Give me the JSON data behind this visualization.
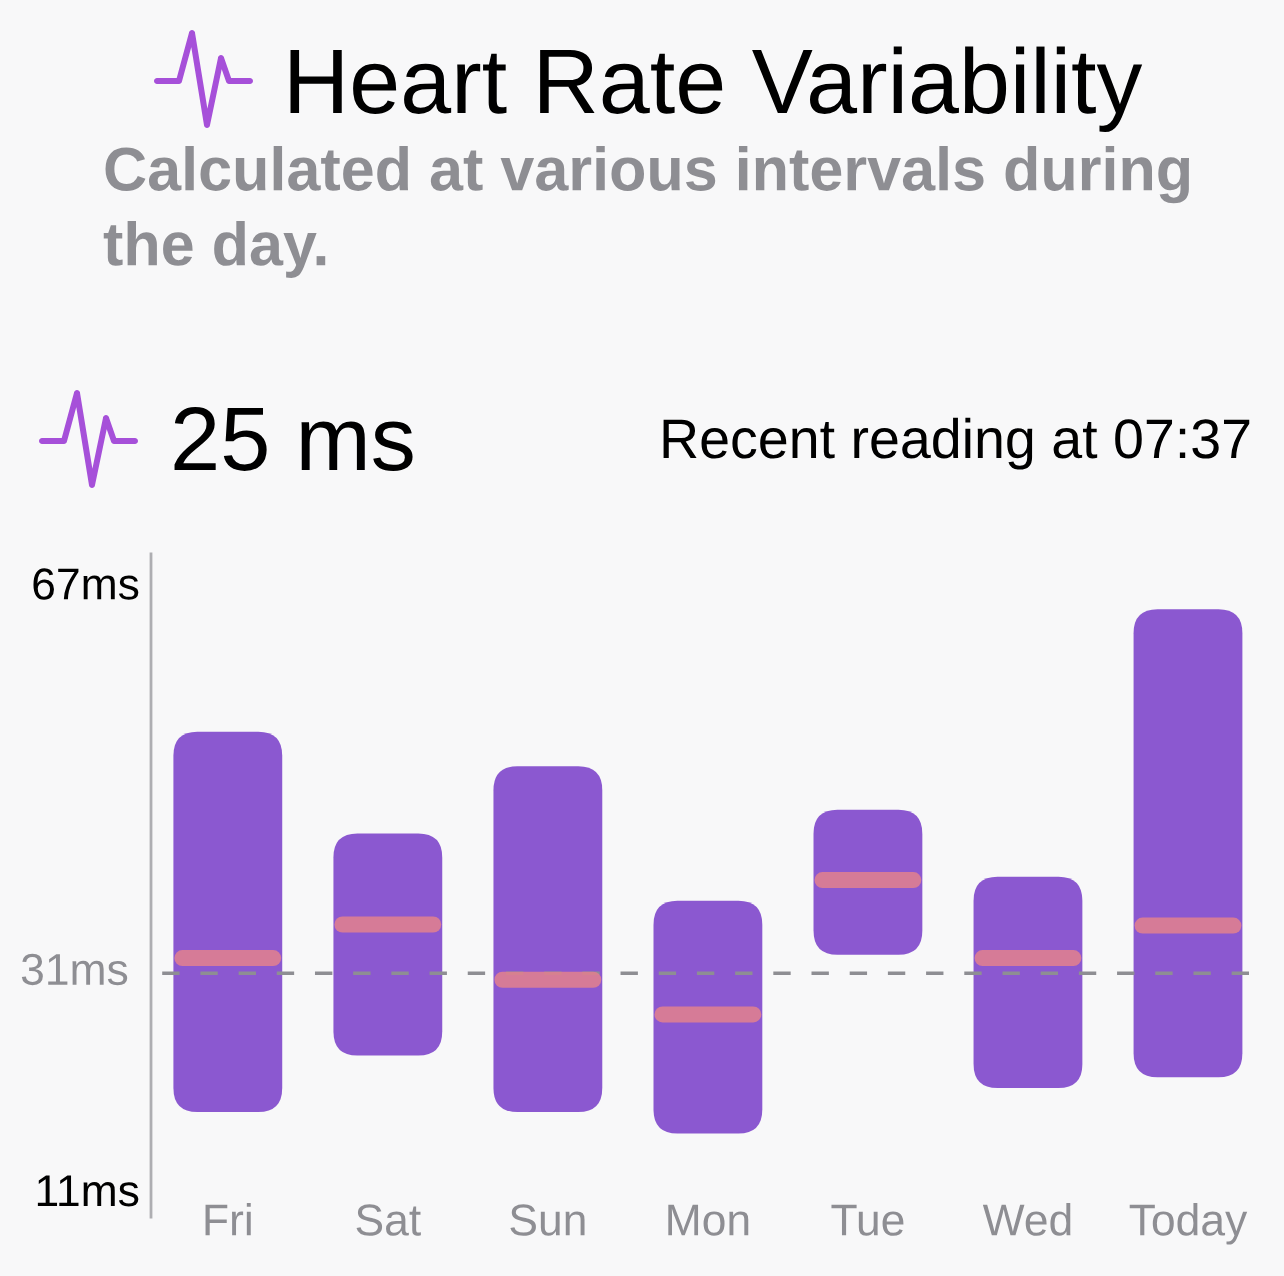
{
  "chart_data": {
    "type": "box",
    "title": "Heart Rate Variability",
    "subtitle": "Calculated at various intervals during the day.",
    "annotations": [
      "25 ms",
      "Recent reading at 07:37"
    ],
    "categories": [
      "Fri",
      "Sat",
      "Sun",
      "Mon",
      "Tue",
      "Wed",
      "Today"
    ],
    "color": "#8b58d0",
    "boxes": [
      {
        "low": 18.2,
        "q1": 18.2,
        "median": 32.4,
        "q3": 53.3,
        "high": 53.3
      },
      {
        "low": 23.4,
        "q1": 23.4,
        "median": 35.5,
        "q3": 43.9,
        "high": 43.9
      },
      {
        "low": 18.2,
        "q1": 18.2,
        "median": 30.4,
        "q3": 50.1,
        "high": 50.1
      },
      {
        "low": 16.2,
        "q1": 16.2,
        "median": 27.2,
        "q3": 37.7,
        "high": 37.7
      },
      {
        "low": 32.7,
        "q1": 32.7,
        "median": 39.6,
        "q3": 46.1,
        "high": 46.1
      },
      {
        "low": 20.4,
        "q1": 20.4,
        "median": 32.4,
        "q3": 39.9,
        "high": 39.9
      },
      {
        "low": 21.4,
        "q1": 21.4,
        "median": 35.4,
        "q3": 64.6,
        "high": 64.6
      }
    ],
    "ylim": [
      8.5,
      69.7
    ],
    "yticks": [
      {
        "value": 11,
        "label": "11ms"
      },
      {
        "value": 67,
        "label": "67ms"
      }
    ],
    "ref_lines": [
      {
        "axis": "y",
        "value": 31,
        "label": "31ms",
        "color": "#8e8e93",
        "line_style": "dashed"
      }
    ]
  }
}
